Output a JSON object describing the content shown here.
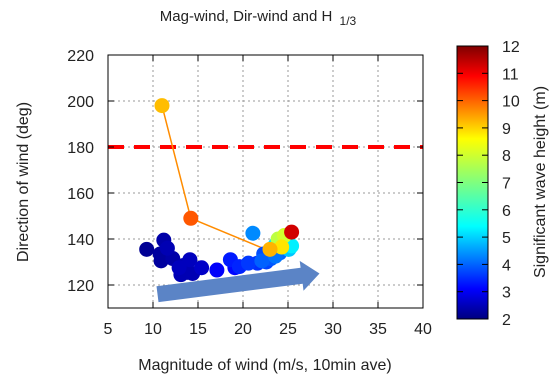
{
  "chart_data": {
    "type": "scatter",
    "title": "Mag-wind, Dir-wind and H",
    "title_subscript": "1/3",
    "xlabel": "Magnitude of wind (m/s, 10min ave)",
    "ylabel": "Direction of wind (deg)",
    "xlim": [
      5,
      40
    ],
    "ylim": [
      110,
      220
    ],
    "xticks": [
      5,
      10,
      15,
      20,
      25,
      30,
      35,
      40
    ],
    "yticks": [
      120,
      140,
      160,
      180,
      200,
      220
    ],
    "grid": true,
    "colorbar": {
      "label": "Significant wave height (m)",
      "min": 2,
      "max": 12,
      "ticks": [
        2,
        3,
        4,
        5,
        6,
        7,
        8,
        9,
        10,
        11,
        12
      ],
      "colormap": "jet"
    },
    "reference_line": {
      "y": 180,
      "style": "dashed",
      "color": "#ff0000"
    },
    "trend_arrow": {
      "from": [
        10.5,
        116
      ],
      "to": [
        28.5,
        125
      ],
      "color": "#5b84c6"
    },
    "track": {
      "color": "#ff8c00",
      "points": [
        [
          11,
          198
        ],
        [
          14.2,
          149
        ],
        [
          22.5,
          135.5
        ]
      ]
    },
    "points": [
      {
        "x": 9.3,
        "y": 135.5,
        "h": 2.2
      },
      {
        "x": 10.8,
        "y": 133.5,
        "h": 2.3
      },
      {
        "x": 11.2,
        "y": 139.5,
        "h": 2.4
      },
      {
        "x": 11.6,
        "y": 136,
        "h": 2.5
      },
      {
        "x": 10.9,
        "y": 130.5,
        "h": 2.3
      },
      {
        "x": 12.2,
        "y": 131.5,
        "h": 2.4
      },
      {
        "x": 12.9,
        "y": 127.5,
        "h": 2.6
      },
      {
        "x": 13.1,
        "y": 124.5,
        "h": 2.5
      },
      {
        "x": 13.8,
        "y": 125.5,
        "h": 2.4
      },
      {
        "x": 14.1,
        "y": 131,
        "h": 2.6
      },
      {
        "x": 14.4,
        "y": 125,
        "h": 2.5
      },
      {
        "x": 15.4,
        "y": 127.5,
        "h": 2.7
      },
      {
        "x": 13.4,
        "y": 128.5,
        "h": 2.5
      },
      {
        "x": 17.1,
        "y": 126.5,
        "h": 3.2
      },
      {
        "x": 18.6,
        "y": 131,
        "h": 3.5
      },
      {
        "x": 19.1,
        "y": 127.5,
        "h": 3.3
      },
      {
        "x": 19.6,
        "y": 128,
        "h": 3.6
      },
      {
        "x": 20.6,
        "y": 129.5,
        "h": 3.8
      },
      {
        "x": 21.1,
        "y": 142.5,
        "h": 4.6
      },
      {
        "x": 21.6,
        "y": 129.5,
        "h": 3.7
      },
      {
        "x": 22.1,
        "y": 130.5,
        "h": 4.2
      },
      {
        "x": 22.3,
        "y": 133.5,
        "h": 4.0
      },
      {
        "x": 22.6,
        "y": 130,
        "h": 3.9
      },
      {
        "x": 23.1,
        "y": 131.5,
        "h": 4.1
      },
      {
        "x": 23.6,
        "y": 132.5,
        "h": 4.4
      },
      {
        "x": 24.1,
        "y": 134,
        "h": 4.3
      },
      {
        "x": 24.6,
        "y": 138,
        "h": 4.8
      },
      {
        "x": 25.1,
        "y": 135.5,
        "h": 5.2
      },
      {
        "x": 25.4,
        "y": 137,
        "h": 5.6
      },
      {
        "x": 23.6,
        "y": 137.5,
        "h": 5.5
      },
      {
        "x": 23.9,
        "y": 140,
        "h": 7.6
      },
      {
        "x": 24.6,
        "y": 141.5,
        "h": 7.8
      },
      {
        "x": 24.3,
        "y": 136.5,
        "h": 8.5
      },
      {
        "x": 23.0,
        "y": 135.5,
        "h": 9.0
      },
      {
        "x": 25.4,
        "y": 143,
        "h": 11.2
      },
      {
        "x": 14.2,
        "y": 149,
        "h": 9.9
      },
      {
        "x": 11.0,
        "y": 198,
        "h": 8.9
      }
    ]
  }
}
